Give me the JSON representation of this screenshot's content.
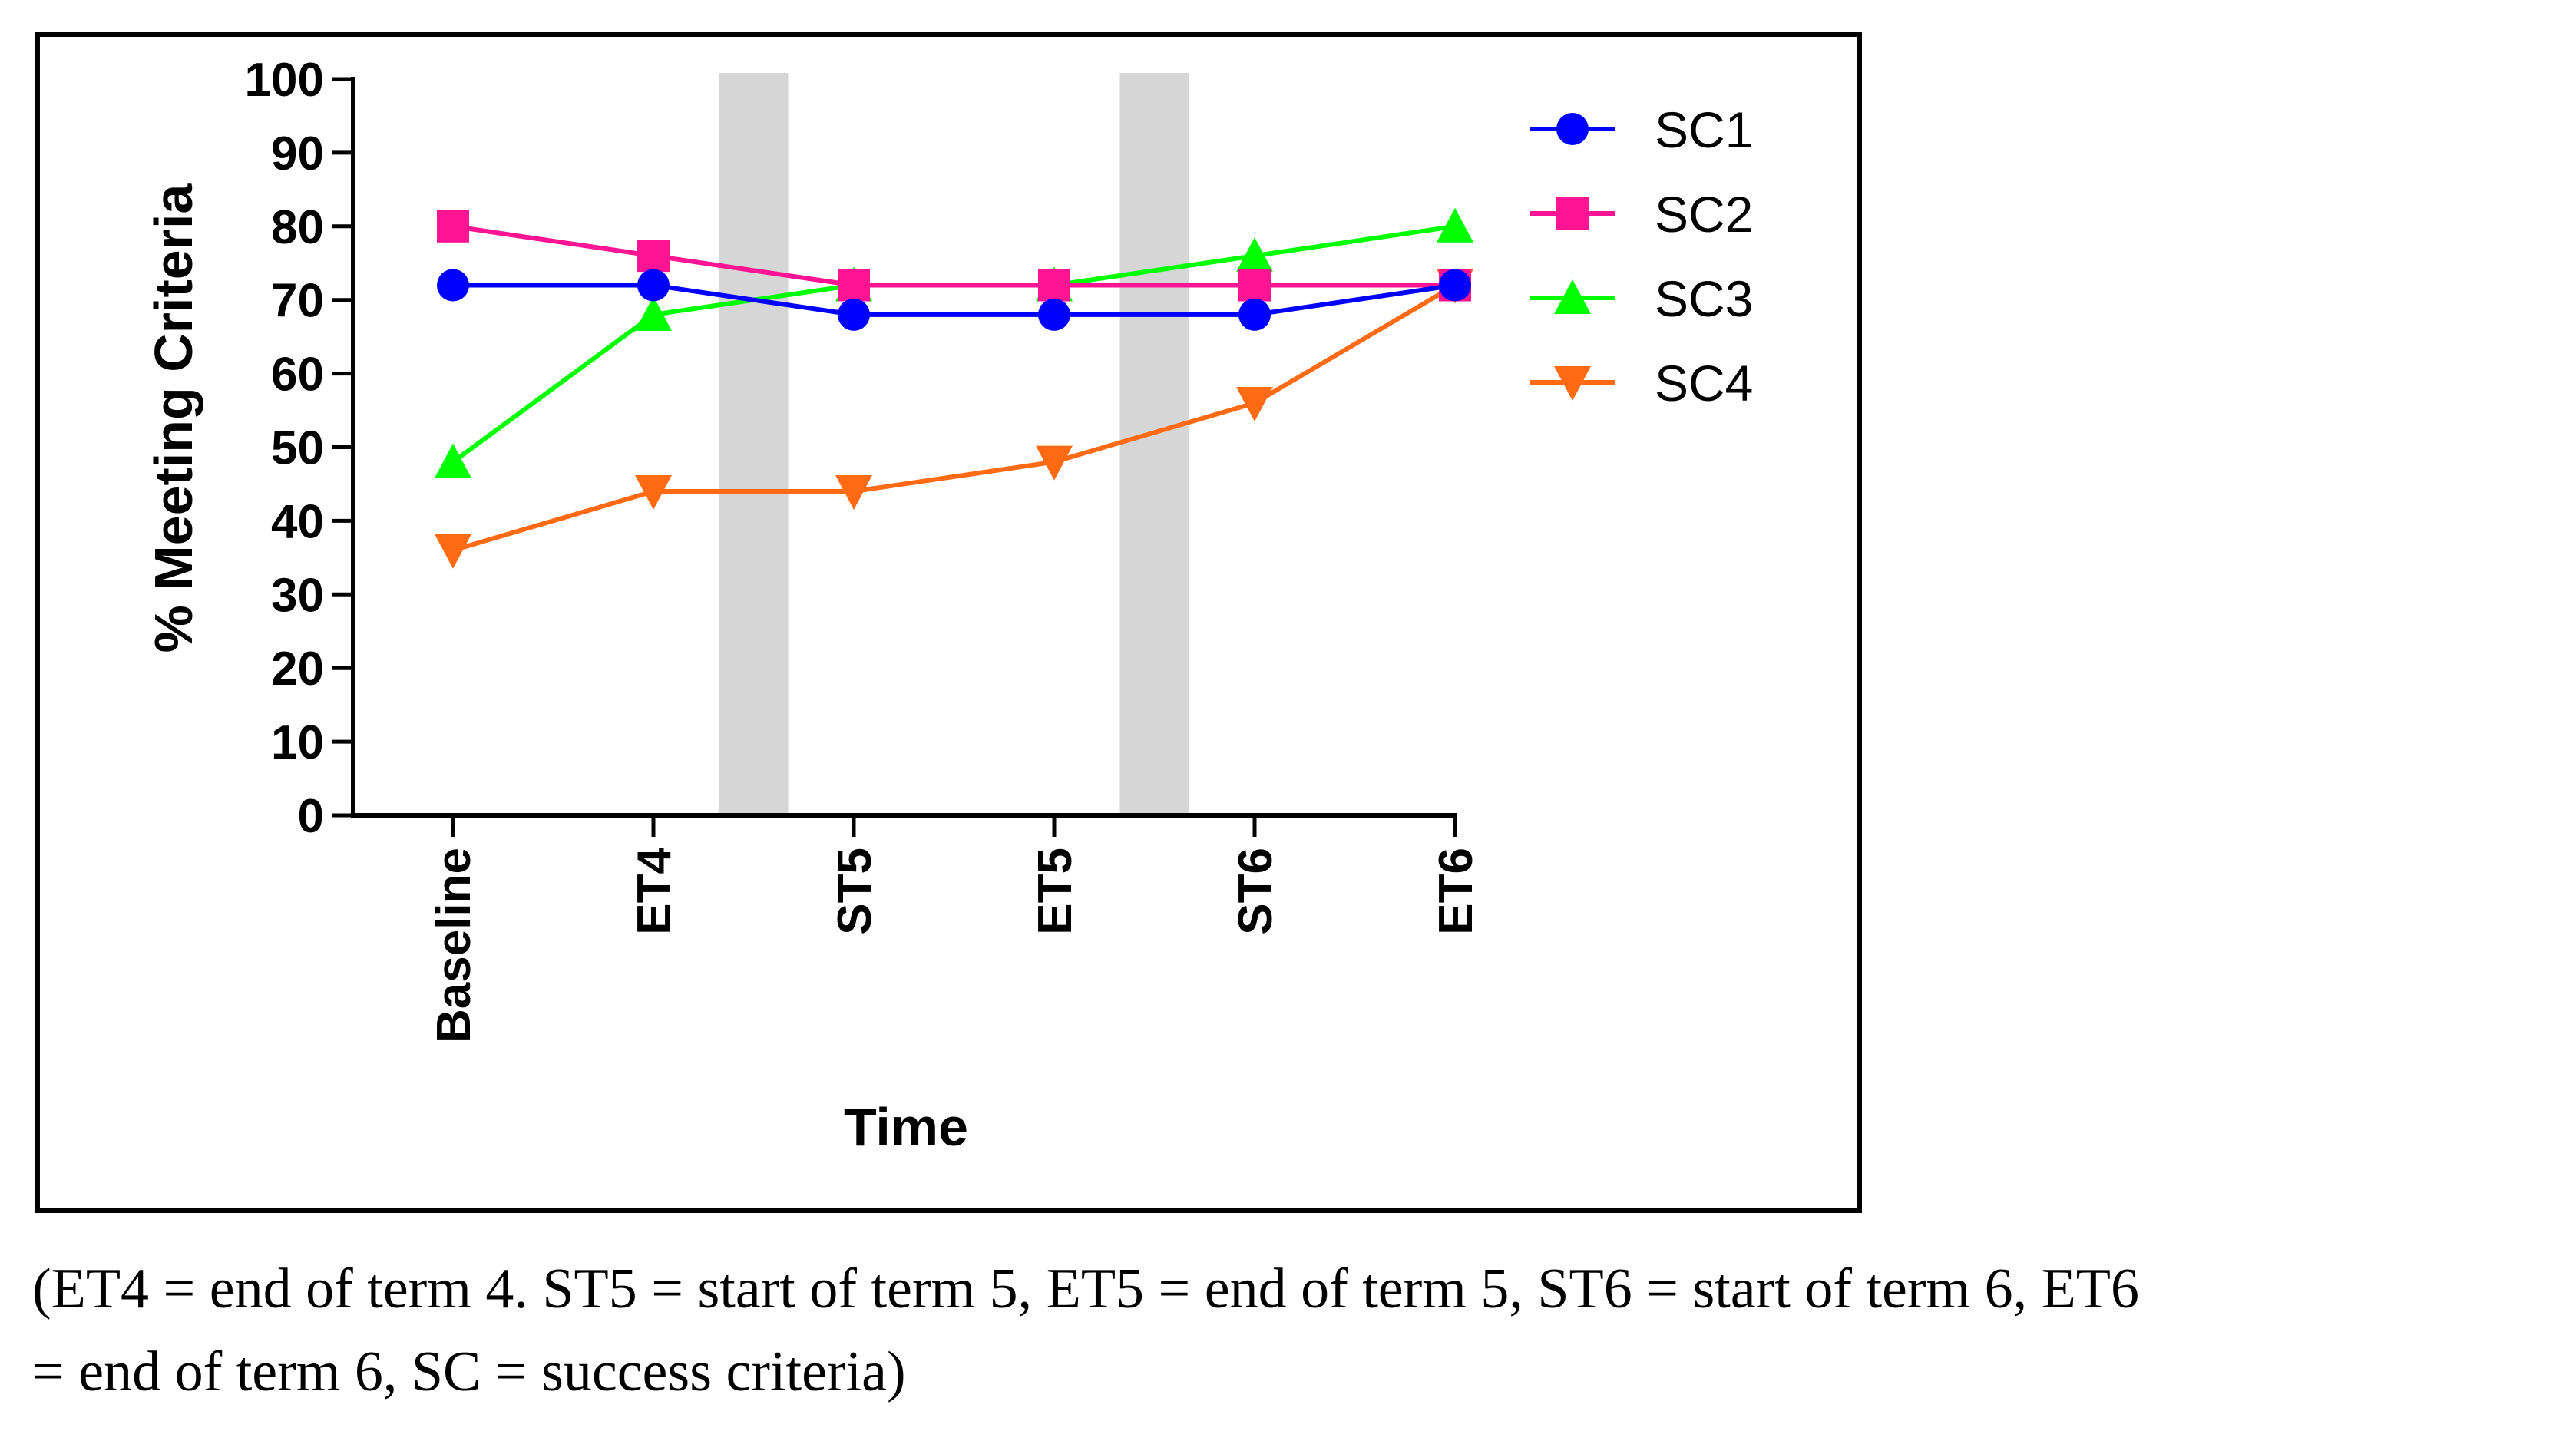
{
  "chart_data": {
    "type": "line",
    "xlabel": "Time",
    "ylabel": "%  Meeting Criteria",
    "ylim": [
      0,
      100
    ],
    "yticks": [
      0,
      10,
      20,
      30,
      40,
      50,
      60,
      70,
      80,
      90,
      100
    ],
    "categories": [
      "Baseline",
      "ET4",
      "ST5",
      "ET5",
      "ST6",
      "ET6"
    ],
    "shaded_intervals": [
      [
        "ET4",
        "ST5"
      ],
      [
        "ET5",
        "ST6"
      ]
    ],
    "legend_position": "right",
    "series": [
      {
        "name": "SC1",
        "color": "#0000ff",
        "marker": "circle",
        "values": [
          72,
          72,
          68,
          68,
          68,
          72
        ]
      },
      {
        "name": "SC2",
        "color": "#ff1493",
        "marker": "square",
        "values": [
          80,
          76,
          72,
          72,
          72,
          72
        ]
      },
      {
        "name": "SC3",
        "color": "#00ff00",
        "marker": "triangle-up",
        "values": [
          48,
          68,
          72,
          72,
          76,
          80
        ]
      },
      {
        "name": "SC4",
        "color": "#ff6a13",
        "marker": "triangle-down",
        "values": [
          36,
          44,
          44,
          48,
          56,
          72
        ]
      }
    ]
  },
  "caption": {
    "line1": "(ET4 = end of term 4. ST5 = start of term 5, ET5 = end of term 5, ST6 = start of term 6, ET6",
    "line2": "= end of term 6, SC = success criteria)"
  }
}
